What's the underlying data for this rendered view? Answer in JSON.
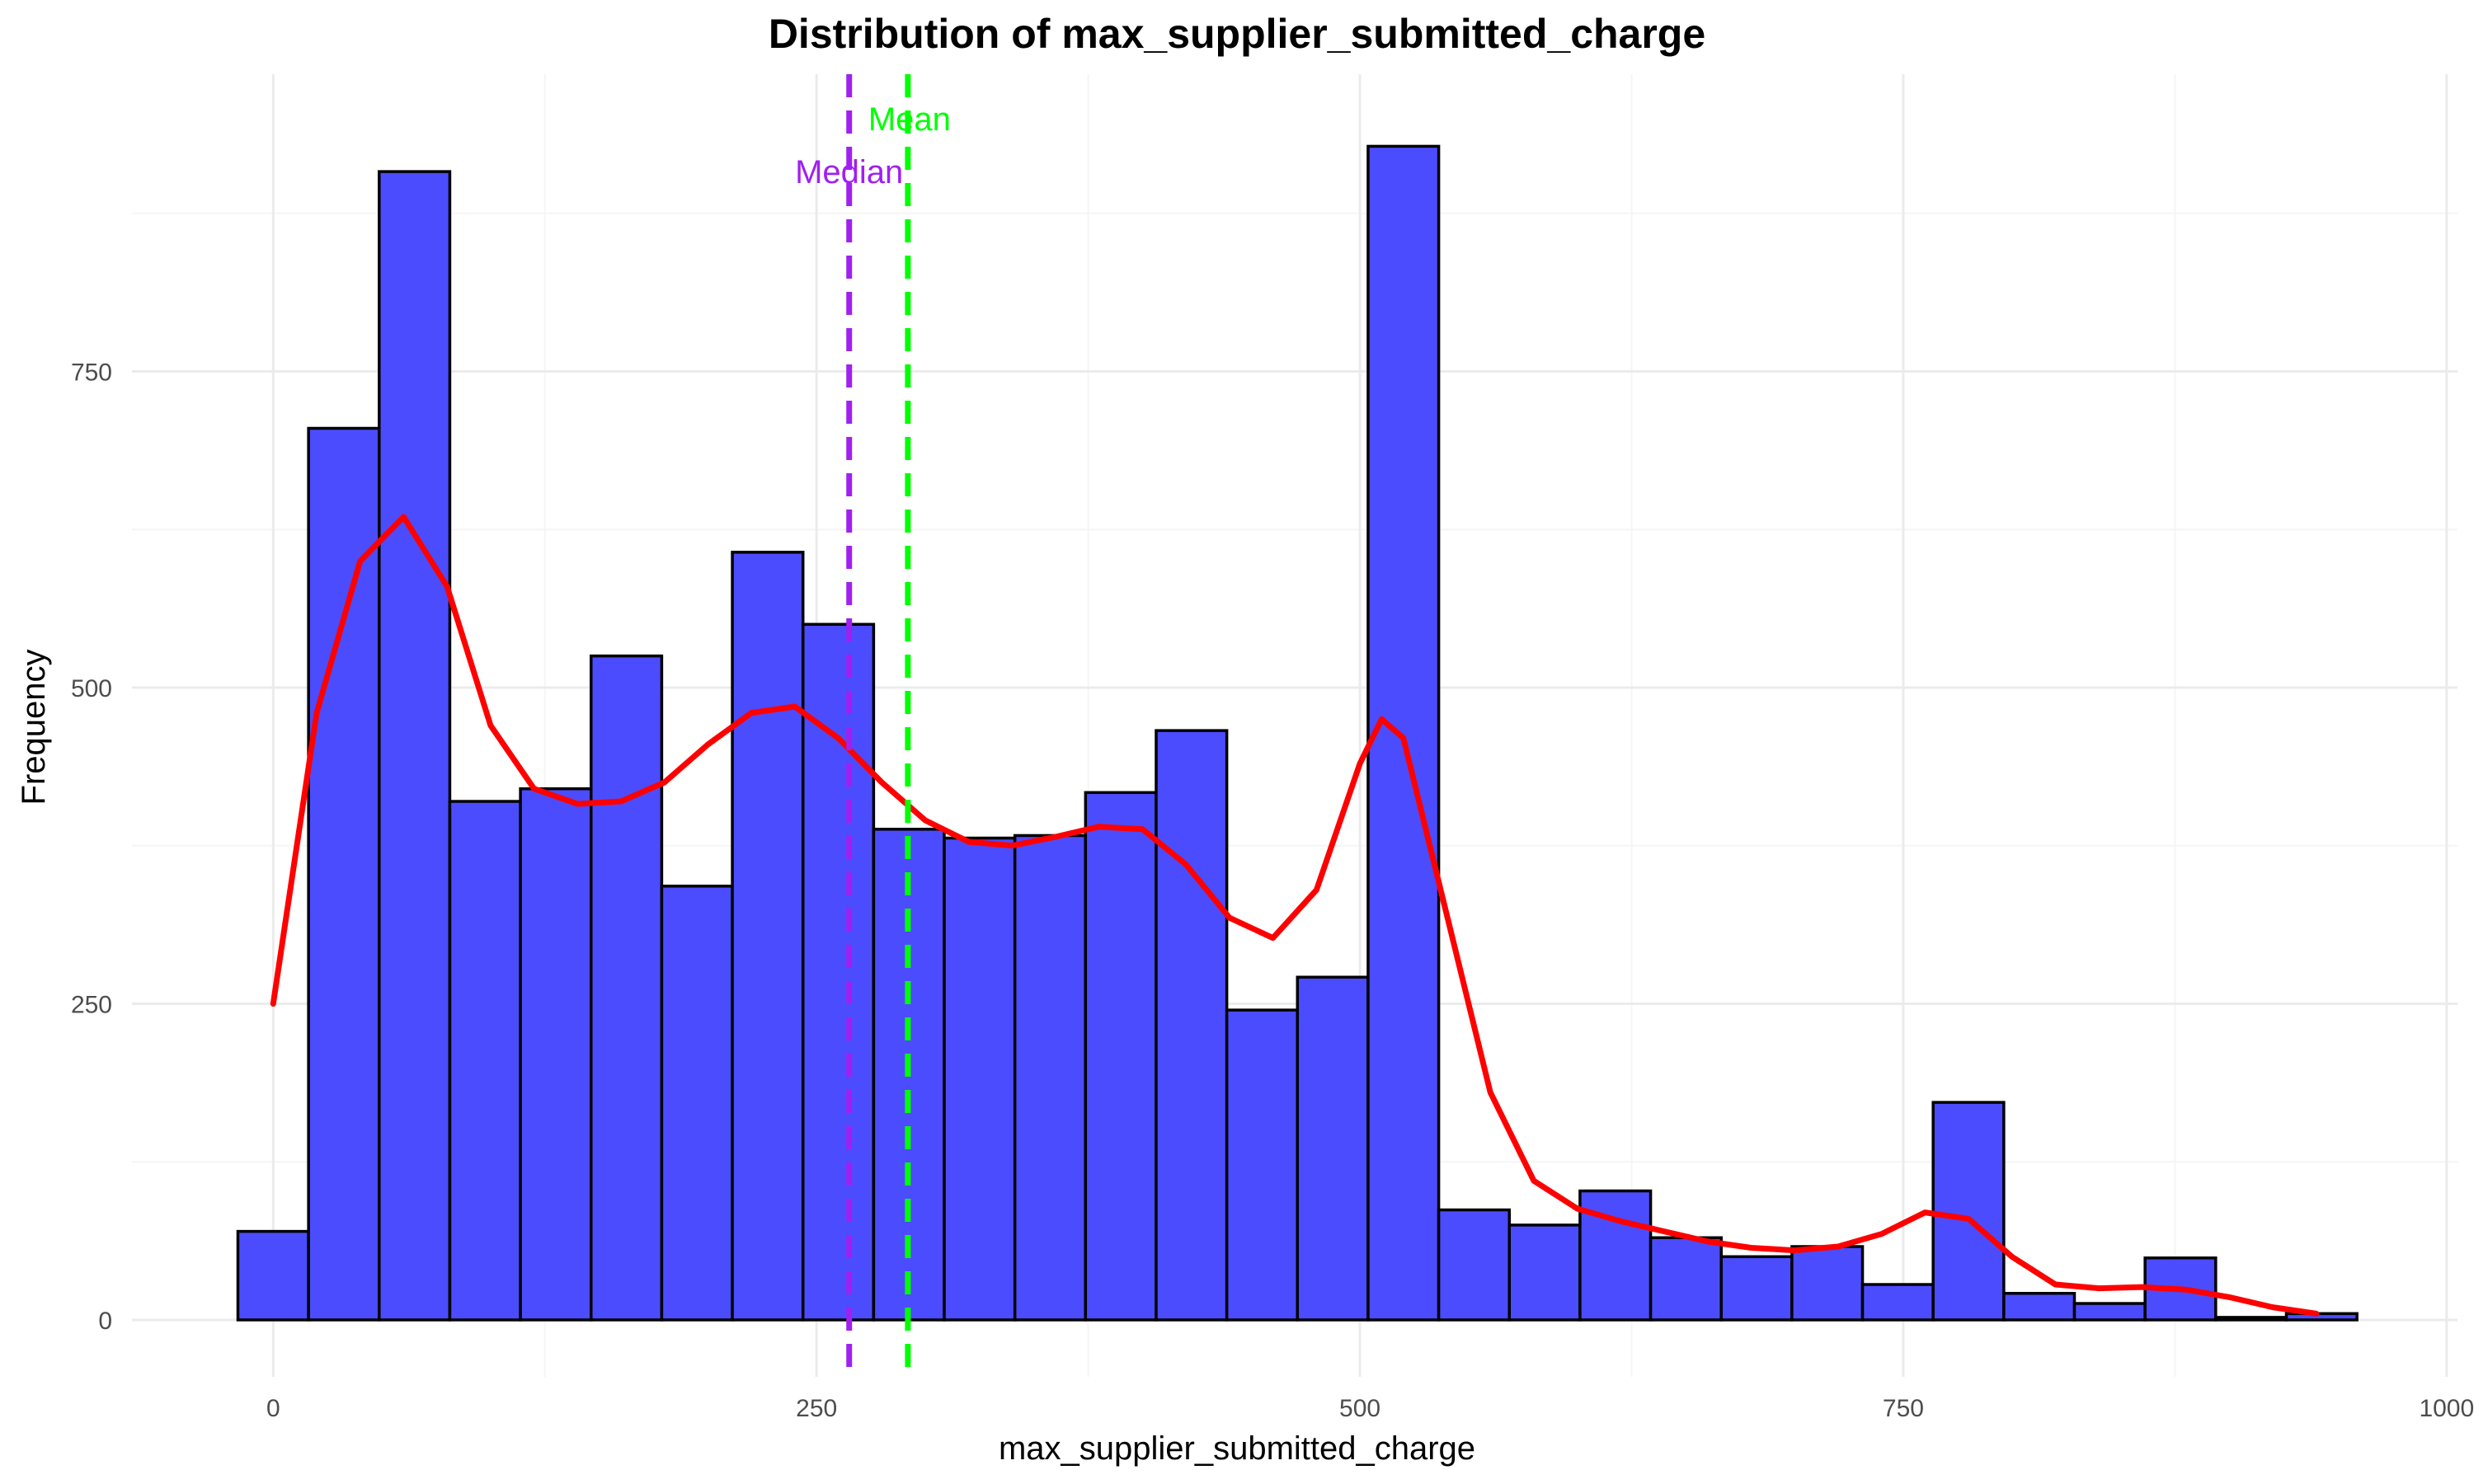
{
  "chart_data": {
    "type": "bar",
    "title": "Distribution of max_supplier_submitted_charge",
    "xlabel": "max_supplier_submitted_charge",
    "ylabel": "Frequency",
    "xlim": [
      -65,
      1005
    ],
    "ylim": [
      -45,
      985
    ],
    "x_ticks": [
      0,
      250,
      500,
      750,
      1000
    ],
    "y_ticks": [
      0,
      250,
      500,
      750
    ],
    "grid": true,
    "bin_width": 32.5,
    "bins": [
      {
        "start": -16.25,
        "end": 16.25,
        "count": 70
      },
      {
        "start": 16.25,
        "end": 48.75,
        "count": 705
      },
      {
        "start": 48.75,
        "end": 81.25,
        "count": 908
      },
      {
        "start": 81.25,
        "end": 113.75,
        "count": 410
      },
      {
        "start": 113.75,
        "end": 146.25,
        "count": 420
      },
      {
        "start": 146.25,
        "end": 178.75,
        "count": 525
      },
      {
        "start": 178.75,
        "end": 211.25,
        "count": 343
      },
      {
        "start": 211.25,
        "end": 243.75,
        "count": 607
      },
      {
        "start": 243.75,
        "end": 276.25,
        "count": 550
      },
      {
        "start": 276.25,
        "end": 308.75,
        "count": 388
      },
      {
        "start": 308.75,
        "end": 341.25,
        "count": 381
      },
      {
        "start": 341.25,
        "end": 373.75,
        "count": 383
      },
      {
        "start": 373.75,
        "end": 406.25,
        "count": 417
      },
      {
        "start": 406.25,
        "end": 438.75,
        "count": 466
      },
      {
        "start": 438.75,
        "end": 471.25,
        "count": 245
      },
      {
        "start": 471.25,
        "end": 503.75,
        "count": 271
      },
      {
        "start": 503.75,
        "end": 536.25,
        "count": 928
      },
      {
        "start": 536.25,
        "end": 568.75,
        "count": 87
      },
      {
        "start": 568.75,
        "end": 601.25,
        "count": 75
      },
      {
        "start": 601.25,
        "end": 633.75,
        "count": 102
      },
      {
        "start": 633.75,
        "end": 666.25,
        "count": 65
      },
      {
        "start": 666.25,
        "end": 698.75,
        "count": 50
      },
      {
        "start": 698.75,
        "end": 731.25,
        "count": 58
      },
      {
        "start": 731.25,
        "end": 763.75,
        "count": 28
      },
      {
        "start": 763.75,
        "end": 796.25,
        "count": 172
      },
      {
        "start": 796.25,
        "end": 828.75,
        "count": 21
      },
      {
        "start": 828.75,
        "end": 861.25,
        "count": 13
      },
      {
        "start": 861.25,
        "end": 893.75,
        "count": 49
      },
      {
        "start": 893.75,
        "end": 926.25,
        "count": 2
      },
      {
        "start": 926.25,
        "end": 958.75,
        "count": 5
      }
    ],
    "density_curve": {
      "name": "",
      "x": [
        0,
        20,
        40,
        60,
        80,
        100,
        120,
        140,
        160,
        180,
        200,
        220,
        240,
        260,
        280,
        300,
        320,
        340,
        360,
        380,
        400,
        420,
        440,
        460,
        480,
        500,
        510,
        520,
        540,
        560,
        580,
        600,
        620,
        640,
        660,
        680,
        700,
        720,
        740,
        760,
        780,
        800,
        820,
        840,
        860,
        880,
        900,
        920,
        940
      ],
      "y": [
        250,
        480,
        600,
        635,
        580,
        470,
        420,
        408,
        410,
        425,
        455,
        480,
        485,
        460,
        425,
        395,
        378,
        375,
        382,
        390,
        388,
        360,
        318,
        302,
        340,
        440,
        475,
        460,
        320,
        180,
        110,
        88,
        78,
        70,
        62,
        57,
        55,
        58,
        68,
        85,
        80,
        50,
        28,
        25,
        26,
        24,
        18,
        10,
        5
      ],
      "color": "#ff0000"
    },
    "annotations": [
      {
        "label": "Median",
        "x": 265,
        "color": "#a020f0"
      },
      {
        "label": "Mean",
        "x": 292,
        "color": "#00ff00"
      }
    ],
    "colors": {
      "bar_fill": "#4c4cff",
      "bar_outline": "#000000",
      "grid_major": "#ebebeb",
      "grid_minor": "#f5f5f5"
    }
  }
}
